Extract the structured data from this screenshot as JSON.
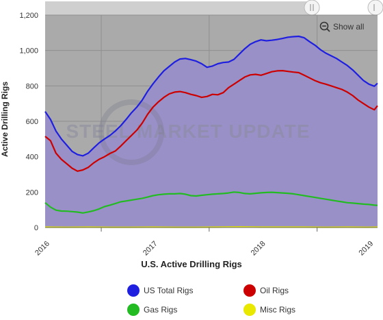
{
  "chart_data": {
    "type": "area",
    "title": "",
    "xlabel": "U.S. Active Drilling Rigs",
    "ylabel": "Active Drilling Rigs",
    "ylim": [
      0,
      1200
    ],
    "y_ticks": [
      "0",
      "200",
      "400",
      "600",
      "800",
      "1,000",
      "1,200"
    ],
    "x_ticks": [
      "2016",
      "2017",
      "2018",
      "2019"
    ],
    "watermark": "STEEL MARKET UPDATE",
    "show_all_label": "Show all",
    "series": [
      {
        "name": "US Total Rigs",
        "color": "#1f1fe0",
        "fill": "#9a90c8",
        "points": [
          [
            2015.8,
            655
          ],
          [
            2015.85,
            610
          ],
          [
            2015.9,
            545
          ],
          [
            2015.95,
            500
          ],
          [
            2016.0,
            465
          ],
          [
            2016.05,
            430
          ],
          [
            2016.1,
            412
          ],
          [
            2016.15,
            405
          ],
          [
            2016.2,
            420
          ],
          [
            2016.25,
            450
          ],
          [
            2016.3,
            478
          ],
          [
            2016.35,
            500
          ],
          [
            2016.4,
            520
          ],
          [
            2016.45,
            545
          ],
          [
            2016.5,
            575
          ],
          [
            2016.55,
            610
          ],
          [
            2016.6,
            648
          ],
          [
            2016.65,
            680
          ],
          [
            2016.7,
            720
          ],
          [
            2016.75,
            770
          ],
          [
            2016.8,
            812
          ],
          [
            2016.85,
            850
          ],
          [
            2016.9,
            885
          ],
          [
            2016.95,
            910
          ],
          [
            2017.0,
            935
          ],
          [
            2017.05,
            952
          ],
          [
            2017.1,
            955
          ],
          [
            2017.15,
            948
          ],
          [
            2017.2,
            940
          ],
          [
            2017.25,
            925
          ],
          [
            2017.3,
            905
          ],
          [
            2017.35,
            912
          ],
          [
            2017.4,
            925
          ],
          [
            2017.45,
            932
          ],
          [
            2017.5,
            935
          ],
          [
            2017.55,
            950
          ],
          [
            2017.6,
            980
          ],
          [
            2017.65,
            1010
          ],
          [
            2017.7,
            1035
          ],
          [
            2017.75,
            1050
          ],
          [
            2017.8,
            1060
          ],
          [
            2017.85,
            1055
          ],
          [
            2017.9,
            1058
          ],
          [
            2017.95,
            1062
          ],
          [
            2018.0,
            1068
          ],
          [
            2018.05,
            1075
          ],
          [
            2018.1,
            1078
          ],
          [
            2018.15,
            1080
          ],
          [
            2018.2,
            1072
          ],
          [
            2018.25,
            1050
          ],
          [
            2018.3,
            1030
          ],
          [
            2018.35,
            1005
          ],
          [
            2018.4,
            985
          ],
          [
            2018.45,
            970
          ],
          [
            2018.5,
            955
          ],
          [
            2018.55,
            935
          ],
          [
            2018.6,
            915
          ],
          [
            2018.65,
            890
          ],
          [
            2018.7,
            860
          ],
          [
            2018.75,
            830
          ],
          [
            2018.8,
            810
          ],
          [
            2018.85,
            798
          ],
          [
            2018.88,
            815
          ]
        ]
      },
      {
        "name": "Oil Rigs",
        "color": "#cc0000",
        "points": [
          [
            2015.8,
            515
          ],
          [
            2015.85,
            490
          ],
          [
            2015.9,
            420
          ],
          [
            2015.95,
            385
          ],
          [
            2016.0,
            360
          ],
          [
            2016.05,
            335
          ],
          [
            2016.1,
            318
          ],
          [
            2016.15,
            325
          ],
          [
            2016.2,
            340
          ],
          [
            2016.25,
            365
          ],
          [
            2016.3,
            385
          ],
          [
            2016.35,
            400
          ],
          [
            2016.4,
            418
          ],
          [
            2016.45,
            432
          ],
          [
            2016.5,
            460
          ],
          [
            2016.55,
            490
          ],
          [
            2016.6,
            520
          ],
          [
            2016.65,
            550
          ],
          [
            2016.7,
            590
          ],
          [
            2016.75,
            640
          ],
          [
            2016.8,
            680
          ],
          [
            2016.85,
            710
          ],
          [
            2016.9,
            735
          ],
          [
            2016.95,
            755
          ],
          [
            2017.0,
            765
          ],
          [
            2017.05,
            768
          ],
          [
            2017.1,
            762
          ],
          [
            2017.15,
            752
          ],
          [
            2017.2,
            745
          ],
          [
            2017.25,
            735
          ],
          [
            2017.3,
            740
          ],
          [
            2017.35,
            752
          ],
          [
            2017.4,
            750
          ],
          [
            2017.45,
            762
          ],
          [
            2017.5,
            790
          ],
          [
            2017.55,
            810
          ],
          [
            2017.6,
            830
          ],
          [
            2017.65,
            850
          ],
          [
            2017.7,
            862
          ],
          [
            2017.75,
            865
          ],
          [
            2017.8,
            860
          ],
          [
            2017.85,
            870
          ],
          [
            2017.9,
            880
          ],
          [
            2017.95,
            885
          ],
          [
            2018.0,
            886
          ],
          [
            2018.05,
            882
          ],
          [
            2018.1,
            878
          ],
          [
            2018.15,
            875
          ],
          [
            2018.2,
            860
          ],
          [
            2018.25,
            845
          ],
          [
            2018.3,
            830
          ],
          [
            2018.35,
            818
          ],
          [
            2018.4,
            810
          ],
          [
            2018.45,
            800
          ],
          [
            2018.5,
            790
          ],
          [
            2018.55,
            780
          ],
          [
            2018.6,
            765
          ],
          [
            2018.65,
            745
          ],
          [
            2018.7,
            720
          ],
          [
            2018.75,
            700
          ],
          [
            2018.8,
            680
          ],
          [
            2018.85,
            665
          ],
          [
            2018.88,
            688
          ]
        ]
      },
      {
        "name": "Gas Rigs",
        "color": "#22bb22",
        "points": [
          [
            2015.8,
            140
          ],
          [
            2015.85,
            115
          ],
          [
            2015.9,
            98
          ],
          [
            2015.95,
            93
          ],
          [
            2016.0,
            92
          ],
          [
            2016.05,
            90
          ],
          [
            2016.1,
            87
          ],
          [
            2016.15,
            82
          ],
          [
            2016.2,
            88
          ],
          [
            2016.25,
            95
          ],
          [
            2016.3,
            105
          ],
          [
            2016.35,
            118
          ],
          [
            2016.4,
            126
          ],
          [
            2016.45,
            135
          ],
          [
            2016.5,
            145
          ],
          [
            2016.55,
            150
          ],
          [
            2016.6,
            155
          ],
          [
            2016.65,
            160
          ],
          [
            2016.7,
            165
          ],
          [
            2016.75,
            172
          ],
          [
            2016.8,
            180
          ],
          [
            2016.85,
            185
          ],
          [
            2016.9,
            188
          ],
          [
            2016.95,
            190
          ],
          [
            2017.0,
            190
          ],
          [
            2017.05,
            192
          ],
          [
            2017.1,
            188
          ],
          [
            2017.15,
            180
          ],
          [
            2017.2,
            178
          ],
          [
            2017.25,
            182
          ],
          [
            2017.3,
            185
          ],
          [
            2017.35,
            188
          ],
          [
            2017.4,
            190
          ],
          [
            2017.45,
            192
          ],
          [
            2017.5,
            195
          ],
          [
            2017.55,
            200
          ],
          [
            2017.6,
            198
          ],
          [
            2017.65,
            192
          ],
          [
            2017.7,
            190
          ],
          [
            2017.75,
            193
          ],
          [
            2017.8,
            196
          ],
          [
            2017.85,
            198
          ],
          [
            2017.9,
            199
          ],
          [
            2017.95,
            197
          ],
          [
            2018.0,
            195
          ],
          [
            2018.05,
            193
          ],
          [
            2018.1,
            190
          ],
          [
            2018.15,
            185
          ],
          [
            2018.2,
            180
          ],
          [
            2018.25,
            175
          ],
          [
            2018.3,
            170
          ],
          [
            2018.35,
            165
          ],
          [
            2018.4,
            160
          ],
          [
            2018.45,
            155
          ],
          [
            2018.5,
            150
          ],
          [
            2018.55,
            145
          ],
          [
            2018.6,
            140
          ],
          [
            2018.65,
            138
          ],
          [
            2018.7,
            135
          ],
          [
            2018.75,
            132
          ],
          [
            2018.8,
            130
          ],
          [
            2018.85,
            126
          ],
          [
            2018.88,
            125
          ]
        ]
      },
      {
        "name": "Misc Rigs",
        "color": "#e8e800",
        "points": [
          [
            2015.8,
            2
          ],
          [
            2016.0,
            1
          ],
          [
            2016.2,
            2
          ],
          [
            2016.4,
            1
          ],
          [
            2016.6,
            1
          ],
          [
            2016.8,
            2
          ],
          [
            2017.0,
            1
          ],
          [
            2017.2,
            1
          ],
          [
            2017.4,
            2
          ],
          [
            2017.6,
            3
          ],
          [
            2017.8,
            2
          ],
          [
            2018.0,
            2
          ],
          [
            2018.2,
            2
          ],
          [
            2018.4,
            1
          ],
          [
            2018.6,
            2
          ],
          [
            2018.8,
            1
          ],
          [
            2018.88,
            2
          ]
        ]
      }
    ]
  }
}
